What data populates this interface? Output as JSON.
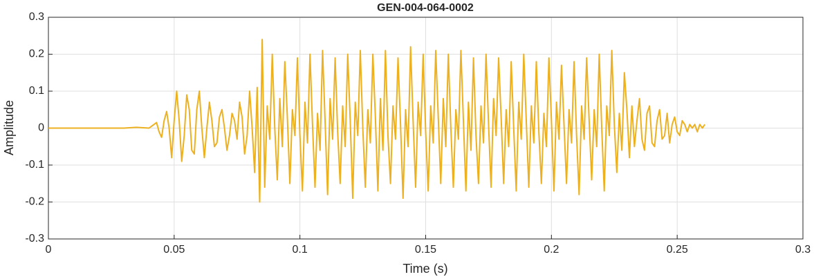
{
  "chart_data": {
    "type": "line",
    "title": "GEN-004-064-0002",
    "xlabel": "Time (s)",
    "ylabel": "Amplitude",
    "xlim": [
      0,
      0.3
    ],
    "xticks": [
      0,
      0.05,
      0.1,
      0.15,
      0.2,
      0.25,
      0.3
    ],
    "ylim": [
      -0.3,
      0.3
    ],
    "yticks": [
      -0.3,
      -0.2,
      -0.1,
      0,
      0.1,
      0.2,
      0.3
    ],
    "grid": true,
    "x": [
      0,
      0.005,
      0.01,
      0.015,
      0.02,
      0.025,
      0.03,
      0.035,
      0.04,
      0.041,
      0.042,
      0.043,
      0.044,
      0.045,
      0.046,
      0.047,
      0.048,
      0.049,
      0.05,
      0.051,
      0.052,
      0.053,
      0.054,
      0.055,
      0.056,
      0.057,
      0.058,
      0.059,
      0.06,
      0.061,
      0.062,
      0.063,
      0.064,
      0.065,
      0.066,
      0.067,
      0.068,
      0.069,
      0.07,
      0.071,
      0.072,
      0.073,
      0.074,
      0.075,
      0.076,
      0.077,
      0.078,
      0.079,
      0.08,
      0.081,
      0.082,
      0.083,
      0.084,
      0.085,
      0.086,
      0.087,
      0.088,
      0.089,
      0.09,
      0.091,
      0.092,
      0.093,
      0.094,
      0.095,
      0.096,
      0.097,
      0.098,
      0.099,
      0.1,
      0.101,
      0.102,
      0.103,
      0.104,
      0.105,
      0.106,
      0.107,
      0.108,
      0.109,
      0.11,
      0.111,
      0.112,
      0.113,
      0.114,
      0.115,
      0.116,
      0.117,
      0.118,
      0.119,
      0.12,
      0.121,
      0.122,
      0.123,
      0.124,
      0.125,
      0.126,
      0.127,
      0.128,
      0.129,
      0.13,
      0.131,
      0.132,
      0.133,
      0.134,
      0.135,
      0.136,
      0.137,
      0.138,
      0.139,
      0.14,
      0.141,
      0.142,
      0.143,
      0.144,
      0.145,
      0.146,
      0.147,
      0.148,
      0.149,
      0.15,
      0.151,
      0.152,
      0.153,
      0.154,
      0.155,
      0.156,
      0.157,
      0.158,
      0.159,
      0.16,
      0.161,
      0.162,
      0.163,
      0.164,
      0.165,
      0.166,
      0.167,
      0.168,
      0.169,
      0.17,
      0.171,
      0.172,
      0.173,
      0.174,
      0.175,
      0.176,
      0.177,
      0.178,
      0.179,
      0.18,
      0.181,
      0.182,
      0.183,
      0.184,
      0.185,
      0.186,
      0.187,
      0.188,
      0.189,
      0.19,
      0.191,
      0.192,
      0.193,
      0.194,
      0.195,
      0.196,
      0.197,
      0.198,
      0.199,
      0.2,
      0.201,
      0.202,
      0.203,
      0.204,
      0.205,
      0.206,
      0.207,
      0.208,
      0.209,
      0.21,
      0.211,
      0.212,
      0.213,
      0.214,
      0.215,
      0.216,
      0.217,
      0.218,
      0.219,
      0.22,
      0.221,
      0.222,
      0.223,
      0.224,
      0.225,
      0.226,
      0.227,
      0.228,
      0.229,
      0.23,
      0.231,
      0.232,
      0.233,
      0.234,
      0.235,
      0.236,
      0.237,
      0.238,
      0.239,
      0.24,
      0.241,
      0.242,
      0.243,
      0.244,
      0.245,
      0.246,
      0.247,
      0.248,
      0.249,
      0.25,
      0.251,
      0.252,
      0.253,
      0.254,
      0.255,
      0.256,
      0.257,
      0.258,
      0.259,
      0.26,
      0.261
    ],
    "series": [
      {
        "name": "Amplitude",
        "color": "#EDB120",
        "values": [
          0,
          0,
          0,
          0,
          0,
          0,
          0,
          0.002,
          0,
          0.005,
          0.01,
          0.015,
          -0.01,
          -0.025,
          0.02,
          0.045,
          0.0,
          -0.08,
          0.02,
          0.1,
          0.02,
          -0.09,
          -0.02,
          0.09,
          0.05,
          -0.06,
          -0.07,
          0.05,
          0.1,
          0.0,
          -0.08,
          0.0,
          0.07,
          0.02,
          -0.05,
          -0.04,
          0.03,
          0.05,
          0.0,
          -0.06,
          -0.02,
          0.04,
          0.02,
          -0.03,
          0.07,
          0.03,
          -0.07,
          -0.02,
          0.1,
          0.0,
          -0.12,
          0.11,
          -0.2,
          0.24,
          -0.16,
          0.06,
          -0.03,
          0.2,
          0.0,
          -0.14,
          0.08,
          -0.05,
          0.18,
          0.03,
          -0.15,
          0.05,
          -0.02,
          0.19,
          -0.02,
          -0.17,
          0.07,
          -0.04,
          0.2,
          0.01,
          -0.16,
          0.04,
          -0.06,
          0.21,
          0.02,
          -0.18,
          0.08,
          -0.03,
          0.19,
          -0.01,
          -0.15,
          0.06,
          -0.05,
          0.2,
          0.02,
          -0.19,
          0.07,
          -0.02,
          0.21,
          0.0,
          -0.16,
          0.05,
          -0.04,
          0.2,
          0.03,
          -0.17,
          0.08,
          -0.06,
          0.21,
          -0.02,
          -0.15,
          0.06,
          -0.03,
          0.19,
          0.01,
          -0.19,
          0.05,
          -0.05,
          0.22,
          0.02,
          -0.16,
          0.07,
          -0.02,
          0.2,
          -0.01,
          -0.17,
          0.06,
          -0.04,
          0.21,
          0.03,
          -0.15,
          0.08,
          -0.05,
          0.2,
          0.0,
          -0.16,
          0.05,
          -0.03,
          0.21,
          0.02,
          -0.17,
          0.07,
          -0.06,
          0.19,
          -0.02,
          -0.15,
          0.06,
          -0.04,
          0.2,
          0.01,
          -0.16,
          0.08,
          -0.02,
          0.19,
          0.03,
          -0.15,
          0.05,
          -0.05,
          0.18,
          0.0,
          -0.17,
          0.07,
          -0.03,
          0.2,
          0.02,
          -0.16,
          0.06,
          -0.04,
          0.18,
          -0.01,
          -0.15,
          0.04,
          -0.05,
          0.19,
          0.02,
          -0.17,
          0.07,
          -0.03,
          0.17,
          0.01,
          -0.15,
          0.05,
          -0.04,
          0.18,
          -0.02,
          -0.18,
          0.06,
          -0.03,
          0.19,
          0.02,
          -0.14,
          0.05,
          -0.05,
          0.2,
          0.0,
          -0.17,
          0.06,
          -0.02,
          0.21,
          0.01,
          -0.12,
          0.04,
          -0.06,
          0.15,
          0.05,
          -0.08,
          0.06,
          -0.05,
          0.02,
          0.08,
          -0.03,
          -0.06,
          0.04,
          0.06,
          -0.04,
          -0.05,
          0.02,
          0.05,
          -0.03,
          -0.02,
          0.04,
          -0.04,
          0.01,
          0.03,
          -0.01,
          -0.02,
          0.02,
          0.01,
          -0.01,
          0.01,
          0.0,
          0.01,
          -0.01,
          0.01,
          0.0,
          0.01
        ]
      }
    ]
  }
}
